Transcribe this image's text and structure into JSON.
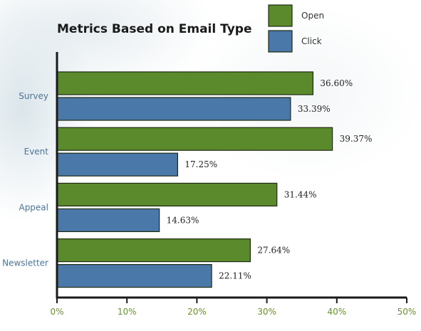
{
  "chart_data": {
    "type": "bar",
    "orientation": "horizontal",
    "title": "Metrics Based on Email Type",
    "categories": [
      "Survey",
      "Event",
      "Appeal",
      "Newsletter"
    ],
    "series": [
      {
        "name": "Open",
        "color": "#5b8a2c",
        "values": [
          36.6,
          39.37,
          31.44,
          27.64
        ],
        "labels": [
          "36.60%",
          "39.37%",
          "31.44%",
          "27.64%"
        ]
      },
      {
        "name": "Click",
        "color": "#4a78a8",
        "values": [
          33.39,
          17.25,
          14.63,
          22.11
        ],
        "labels": [
          "33.39%",
          "17.25%",
          "14.63%",
          "22.11%"
        ]
      }
    ],
    "xlim": [
      0,
      50
    ],
    "xticks": [
      "0%",
      "10%",
      "20%",
      "30%",
      "40%",
      "50%"
    ],
    "xlabel": "",
    "ylabel": "",
    "grid": false,
    "legend_position": "top-right"
  }
}
